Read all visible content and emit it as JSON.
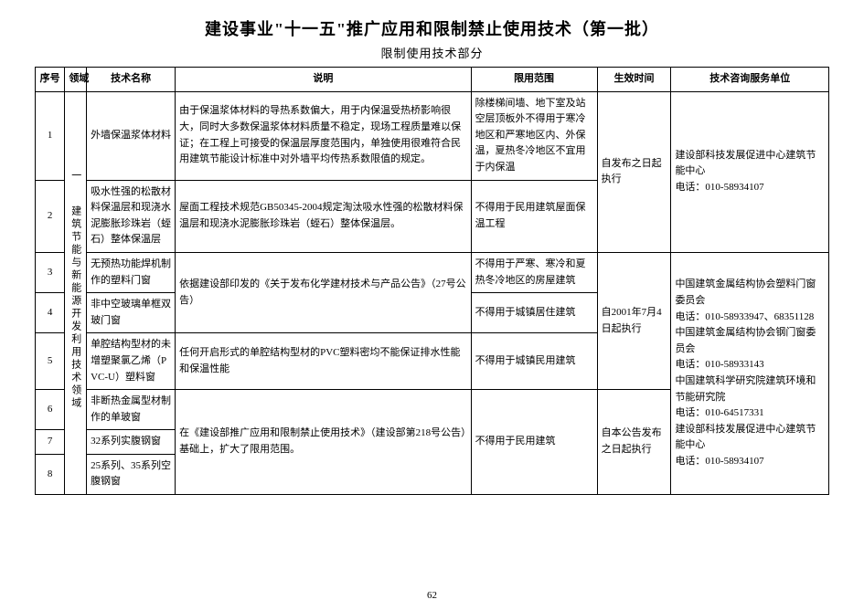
{
  "title": "建设事业\"十一五\"推广应用和限制禁止使用技术（第一批）",
  "subtitle": "限制使用技术部分",
  "headers": {
    "seq": "序号",
    "domain": "领域",
    "name": "技术名称",
    "desc": "说明",
    "scope": "限用范围",
    "time": "生效时间",
    "contact": "技术咨询服务单位"
  },
  "domain_label_1": "一",
  "domain_label_2": "建筑节能与新能源开发利用技术领域",
  "rows": {
    "r1": {
      "seq": "1",
      "name": "外墙保温浆体材料",
      "desc": "由于保温浆体材料的导热系数偏大，用于内保温受热桥影响很大，同时大多数保温浆体材料质量不稳定，现场工程质量难以保证；在工程上可接受的保温层厚度范围内，单独使用很难符合民用建筑节能设计标准中对外墙平均传热系数限值的规定。",
      "scope": "除楼梯间墙、地下室及站空层顶板外不得用于寒冷地区和严寒地区内、外保温，夏热冬冷地区不宜用于内保温"
    },
    "r2": {
      "seq": "2",
      "name": "吸水性强的松散材料保温层和现浇水泥膨胀珍珠岩（蛭石）整体保温层",
      "desc": "屋面工程技术规范GB50345-2004规定淘汰吸水性强的松散材料保温层和现浇水泥膨胀珍珠岩（蛭石）整体保温层。",
      "scope": "不得用于民用建筑屋面保温工程"
    },
    "time_a": "自发布之日起执行",
    "contact_a": "建设部科技发展促进中心建筑节能中心\n电话：010-58934107",
    "r3": {
      "seq": "3",
      "name": "无预热功能焊机制作的塑料门窗",
      "desc_shared": "依据建设部印发的《关于发布化学建材技术与产品公告》（27号公告）",
      "scope": "不得用于严寒、寒冷和夏热冬冷地区的房屋建筑"
    },
    "r4": {
      "seq": "4",
      "name": "非中空玻璃单框双玻门窗",
      "scope": "不得用于城镇居住建筑"
    },
    "r5": {
      "seq": "5",
      "name": "单腔结构型材的未增塑聚氯乙烯（PVC-U）塑料窗",
      "desc": "任何开启形式的单腔结构型材的PVC塑料密均不能保证排水性能和保温性能",
      "scope": "不得用于城镇民用建筑"
    },
    "time_b": "自2001年7月4日起执行",
    "r6": {
      "seq": "6",
      "name": "非断热金属型材制作的单玻窗",
      "scope": ""
    },
    "r7": {
      "seq": "7",
      "name": "32系列实腹钢窗",
      "desc_shared": "在《建设部推广应用和限制禁止使用技术》（建设部第218号公告）基础上，扩大了限用范围。",
      "scope": "不得用于民用建筑"
    },
    "r8": {
      "seq": "8",
      "name": "25系列、35系列空腹钢窗"
    },
    "time_c": "自本公告发布之日起执行",
    "contact_b": "中国建筑金属结构协会塑料门窗委员会\n电话：010-58933947、68351128\n中国建筑金属结构协会钢门窗委员会\n电话：010-58933143\n中国建筑科学研究院建筑环境和节能研究院\n电话：010-64517331\n建设部科技发展促进中心建筑节能中心\n电话：010-58934107"
  },
  "page_number": "62"
}
